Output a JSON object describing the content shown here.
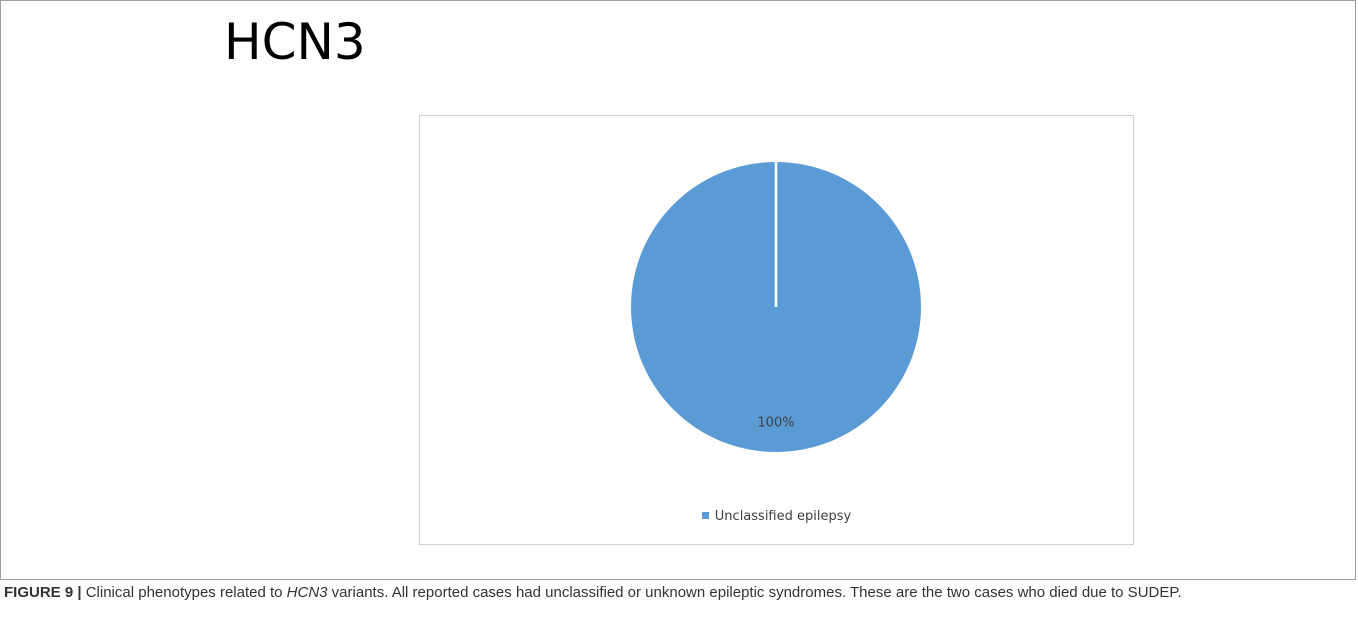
{
  "figure": {
    "header_title": "HCN3",
    "caption": {
      "label": "FIGURE 9 |",
      "text_before": " Clinical phenotypes related to ",
      "gene": "HCN3",
      "text_after": " variants. All reported cases had unclassified or unknown epileptic syndromes. These are the two cases who died due to SUDEP."
    }
  },
  "chart_data": {
    "type": "pie",
    "categories": [
      "Unclassified epilepsy"
    ],
    "values": [
      100
    ],
    "data_labels": [
      "100%"
    ],
    "colors": [
      "#5b9bd5"
    ],
    "legend_placement": "bottom"
  }
}
